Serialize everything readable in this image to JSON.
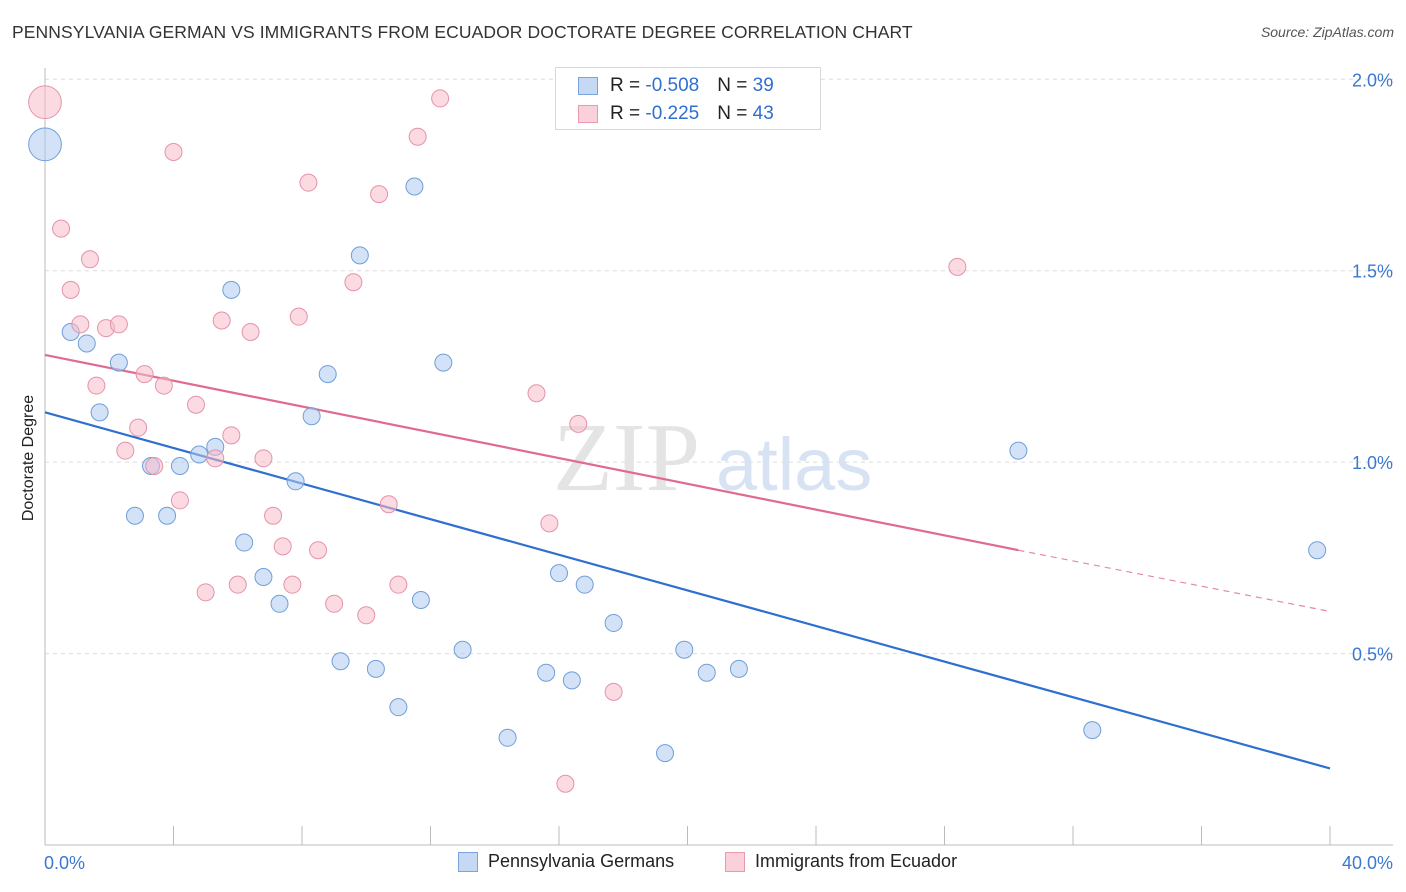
{
  "title": "PENNSYLVANIA GERMAN VS IMMIGRANTS FROM ECUADOR DOCTORATE DEGREE CORRELATION CHART",
  "source": "Source: ZipAtlas.com",
  "watermark": {
    "zip": "ZIP",
    "atlas": "atlas"
  },
  "legend": {
    "rows": [
      {
        "r_label": "R = ",
        "r_value": "-0.508",
        "n_label": "N = ",
        "n_value": "39",
        "color": "#aecbf0"
      },
      {
        "r_label": "R = ",
        "r_value": "-0.225",
        "n_label": "N = ",
        "n_value": "43",
        "color": "#f7bccb"
      }
    ]
  },
  "bottom_legend": {
    "items": [
      {
        "label": "Pennsylvania Germans",
        "color": "#aecbf0"
      },
      {
        "label": "Immigrants from Ecuador",
        "color": "#f7bccb"
      }
    ]
  },
  "chart_data": {
    "type": "scatter",
    "title": "PENNSYLVANIA GERMAN VS IMMIGRANTS FROM ECUADOR DOCTORATE DEGREE CORRELATION CHART",
    "xlabel": "",
    "ylabel": "Doctorate Degree",
    "xlim": [
      0,
      40
    ],
    "ylim": [
      0,
      2.1
    ],
    "x_tick_labels": [
      "0.0%",
      "40.0%"
    ],
    "y_ticks": [
      0.5,
      1.0,
      1.5,
      2.0
    ],
    "y_tick_labels": [
      "0.5%",
      "1.0%",
      "1.5%",
      "2.0%"
    ],
    "grid": true,
    "legend_position": "top-center",
    "series": [
      {
        "name": "Pennsylvania Germans",
        "color": "#aecbf0",
        "stroke": "#6f9fd8",
        "line_color": "#2f6fcf",
        "points": [
          [
            0.0,
            1.83,
            3.5
          ],
          [
            0.8,
            1.34,
            1
          ],
          [
            1.3,
            1.31,
            1
          ],
          [
            2.3,
            1.26,
            1
          ],
          [
            1.7,
            1.13,
            1
          ],
          [
            3.3,
            0.99,
            1
          ],
          [
            4.2,
            0.99,
            1
          ],
          [
            4.8,
            1.02,
            1
          ],
          [
            5.3,
            1.04,
            1
          ],
          [
            2.8,
            0.86,
            1
          ],
          [
            3.8,
            0.86,
            1
          ],
          [
            5.8,
            1.45,
            1
          ],
          [
            6.2,
            0.79,
            1
          ],
          [
            6.8,
            0.7,
            1
          ],
          [
            7.3,
            0.63,
            1
          ],
          [
            7.8,
            0.95,
            1
          ],
          [
            8.3,
            1.12,
            1
          ],
          [
            8.8,
            1.23,
            1
          ],
          [
            9.2,
            0.48,
            1
          ],
          [
            9.8,
            1.54,
            1
          ],
          [
            10.3,
            0.46,
            1
          ],
          [
            11.0,
            0.36,
            1
          ],
          [
            11.5,
            1.72,
            1
          ],
          [
            11.7,
            0.64,
            1
          ],
          [
            12.4,
            1.26,
            1
          ],
          [
            13.0,
            0.51,
            1
          ],
          [
            14.4,
            0.28,
            1
          ],
          [
            15.6,
            0.45,
            1
          ],
          [
            16.0,
            0.71,
            1
          ],
          [
            16.4,
            0.43,
            1
          ],
          [
            16.8,
            0.68,
            1
          ],
          [
            17.7,
            0.58,
            1
          ],
          [
            19.3,
            0.24,
            1
          ],
          [
            19.9,
            0.51,
            1
          ],
          [
            20.6,
            0.45,
            1
          ],
          [
            21.6,
            0.46,
            1
          ],
          [
            30.3,
            1.03,
            1
          ],
          [
            32.6,
            0.3,
            1
          ],
          [
            39.6,
            0.77,
            1
          ]
        ],
        "trend": {
          "x": [
            0,
            40
          ],
          "y": [
            1.13,
            0.2
          ]
        }
      },
      {
        "name": "Immigrants from Ecuador",
        "color": "#f7bccb",
        "stroke": "#e493aa",
        "line_color": "#e06a92",
        "points": [
          [
            0.0,
            1.94,
            3.5
          ],
          [
            0.5,
            1.61,
            1
          ],
          [
            0.8,
            1.45,
            1
          ],
          [
            1.1,
            1.36,
            1
          ],
          [
            1.4,
            1.53,
            1
          ],
          [
            1.6,
            1.2,
            1
          ],
          [
            1.9,
            1.35,
            1
          ],
          [
            2.3,
            1.36,
            1
          ],
          [
            2.5,
            1.03,
            1
          ],
          [
            2.9,
            1.09,
            1
          ],
          [
            3.1,
            1.23,
            1
          ],
          [
            3.4,
            0.99,
            1
          ],
          [
            3.7,
            1.2,
            1
          ],
          [
            4.0,
            1.81,
            1
          ],
          [
            4.2,
            0.9,
            1
          ],
          [
            4.7,
            1.15,
            1
          ],
          [
            5.0,
            0.66,
            1
          ],
          [
            5.3,
            1.01,
            1
          ],
          [
            5.5,
            1.37,
            1
          ],
          [
            5.8,
            1.07,
            1
          ],
          [
            6.0,
            0.68,
            1
          ],
          [
            6.4,
            1.34,
            1
          ],
          [
            6.8,
            1.01,
            1
          ],
          [
            7.1,
            0.86,
            1
          ],
          [
            7.4,
            0.78,
            1
          ],
          [
            7.7,
            0.68,
            1
          ],
          [
            7.9,
            1.38,
            1
          ],
          [
            8.2,
            1.73,
            1
          ],
          [
            8.5,
            0.77,
            1
          ],
          [
            9.0,
            0.63,
            1
          ],
          [
            9.6,
            1.47,
            1
          ],
          [
            10.0,
            0.6,
            1
          ],
          [
            10.4,
            1.7,
            1
          ],
          [
            10.7,
            0.89,
            1
          ],
          [
            11.0,
            0.68,
            1
          ],
          [
            11.6,
            1.85,
            1
          ],
          [
            12.3,
            1.95,
            1
          ],
          [
            15.3,
            1.18,
            1
          ],
          [
            15.7,
            0.84,
            1
          ],
          [
            16.2,
            0.16,
            1
          ],
          [
            16.6,
            1.1,
            1
          ],
          [
            17.7,
            0.4,
            1
          ],
          [
            28.4,
            1.51,
            1
          ]
        ],
        "trend": {
          "x": [
            0,
            30.3
          ],
          "y": [
            1.28,
            0.77
          ]
        },
        "trend_extension": {
          "x": [
            30.3,
            40
          ],
          "y": [
            0.77,
            0.61
          ]
        }
      }
    ]
  }
}
